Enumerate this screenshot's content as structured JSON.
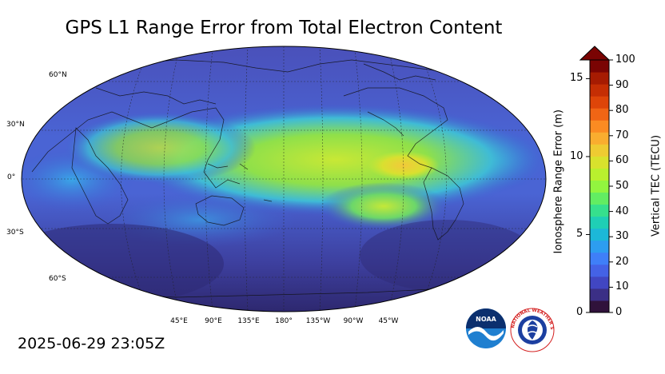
{
  "title": "GPS L1 Range Error from Total Electron Content",
  "timestamp": "2025-06-29 23:05Z",
  "lat_labels": [
    "60°N",
    "30°N",
    "0°",
    "30°S",
    "60°S"
  ],
  "lon_labels": [
    "45°E",
    "90°E",
    "135°E",
    "180°",
    "135°W",
    "90°W",
    "45°W"
  ],
  "colorbar": {
    "left_label": "Ionosphere Range Error (m)",
    "right_label": "Vertical TEC (TECU)",
    "left_ticks": [
      "0",
      "5",
      "10",
      "15"
    ],
    "right_ticks": [
      "0",
      "10",
      "20",
      "30",
      "40",
      "50",
      "60",
      "70",
      "80",
      "90",
      "100"
    ],
    "tec_range": [
      0,
      100
    ],
    "range_error_m": [
      0,
      16.2
    ],
    "extend": "max"
  },
  "logos": {
    "noaa": "NOAA",
    "nws": "NATIONAL WEATHER SERVICE"
  },
  "colors": {
    "background_low": "#3b3f9e",
    "equatorial_band": "#b5e33a",
    "peak": "#f5c430",
    "polar": "#2b2467",
    "colorbar_top": "#7a0403"
  }
}
